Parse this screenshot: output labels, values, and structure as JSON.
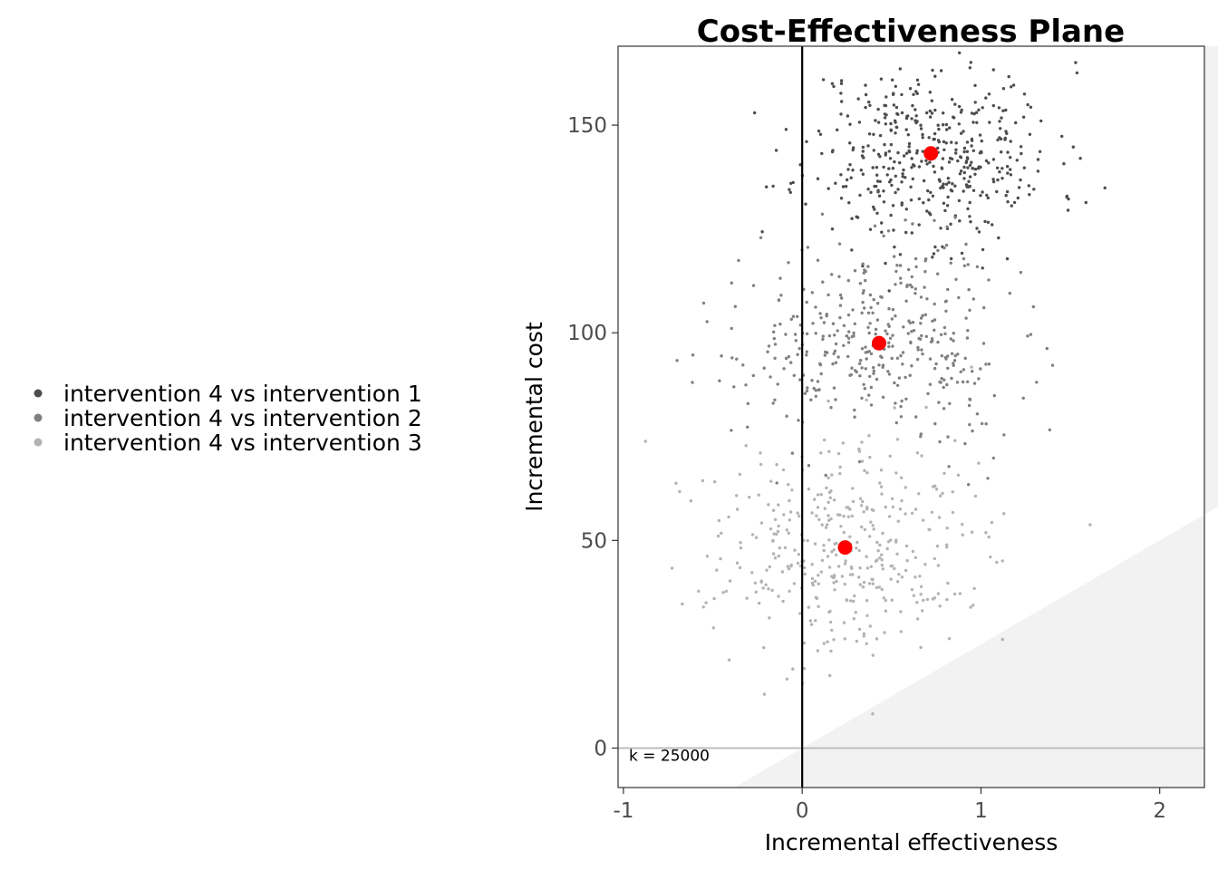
{
  "chart_data": {
    "type": "scatter",
    "title": "Cost-Effectiveness Plane",
    "xlabel": "Incremental effectiveness",
    "ylabel": "Incremental cost",
    "xlim": [
      -1.03,
      2.25
    ],
    "ylim": [
      -9.5,
      169
    ],
    "x_ticks": [
      -1,
      0,
      1,
      2
    ],
    "x_tick_labels": [
      "-1",
      "0",
      "1",
      "2"
    ],
    "y_ticks": [
      0,
      50,
      100,
      150
    ],
    "y_tick_labels": [
      "0",
      "50",
      "100",
      "150"
    ],
    "grid": false,
    "legend_position": "left",
    "annotation": "k = 25000",
    "willingness_to_pay": 25000,
    "colors": {
      "series_1": "#4d4d4d",
      "series_2": "#808080",
      "series_3": "#b3b3b3",
      "mean_point": "#ff0000",
      "acceptable_region": "#f2f2f2"
    },
    "series": [
      {
        "name": "intervention 4 vs intervention 1",
        "mean": [
          0.72,
          143.2
        ],
        "sd": [
          0.35,
          11
        ],
        "n": 450,
        "seed": 11
      },
      {
        "name": "intervention 4 vs intervention 2",
        "mean": [
          0.43,
          97.5
        ],
        "sd": [
          0.38,
          12
        ],
        "n": 400,
        "seed": 22
      },
      {
        "name": "intervention 4 vs intervention 3",
        "mean": [
          0.24,
          48.3
        ],
        "sd": [
          0.38,
          13
        ],
        "n": 400,
        "seed": 33
      }
    ]
  }
}
